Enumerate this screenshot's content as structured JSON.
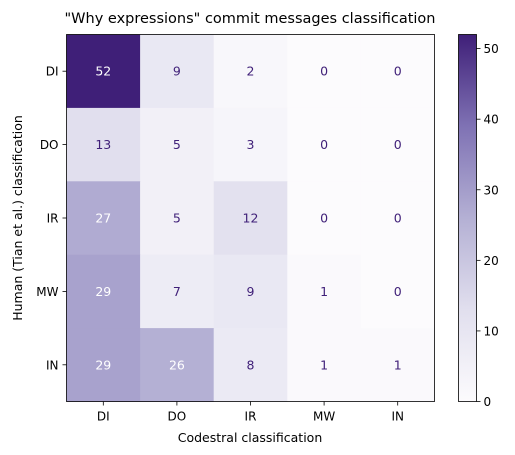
{
  "chart_data": {
    "type": "heatmap",
    "title": "\"Why expressions\" commit messages classification",
    "xlabel": "Codestral classification",
    "ylabel": "Human (Tian et al.) classification",
    "x_categories": [
      "DI",
      "DO",
      "IR",
      "MW",
      "IN"
    ],
    "y_categories": [
      "DI",
      "DO",
      "IR",
      "MW",
      "IN"
    ],
    "values": [
      [
        52,
        9,
        2,
        0,
        0
      ],
      [
        13,
        5,
        3,
        0,
        0
      ],
      [
        27,
        5,
        12,
        0,
        0
      ],
      [
        29,
        7,
        9,
        1,
        0
      ],
      [
        29,
        26,
        8,
        1,
        1
      ]
    ],
    "colorbar": {
      "min": 0,
      "max": 52,
      "ticks": [
        "0",
        "10",
        "20",
        "30",
        "40",
        "50"
      ]
    },
    "colormap": {
      "low": "#fcfbfd",
      "high": "#3f1f78",
      "light_text": "#ffffff",
      "dark_text": "#3f1f78"
    }
  }
}
